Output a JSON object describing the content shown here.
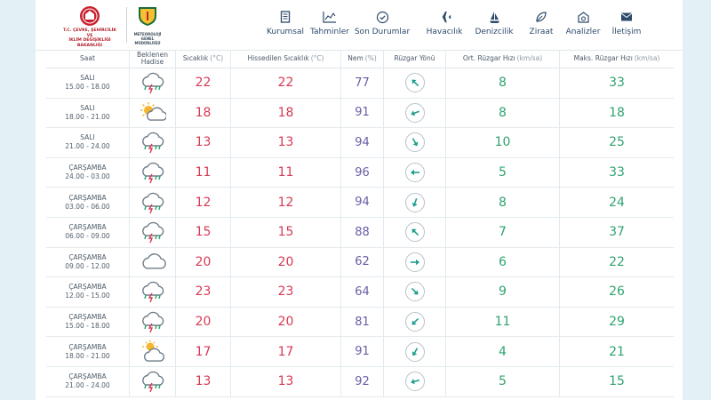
{
  "logos": {
    "ministry_text": [
      "T.C. ÇEVRE, ŞEHİRCİLİK VE",
      "İKLİM DEĞİŞİKLİĞİ BAKANLIĞI"
    ],
    "mgm_text": [
      "METEOROLOJİ",
      "GENEL MÜDÜRLÜĞÜ"
    ]
  },
  "nav": [
    {
      "label": "Kurumsal",
      "icon": "document-icon"
    },
    {
      "label": "Tahminler",
      "icon": "chart-icon"
    },
    {
      "label": "Son Durumlar",
      "icon": "clock-check-icon"
    },
    {
      "label": "Havacılık",
      "icon": "airplane-icon"
    },
    {
      "label": "Denizcilik",
      "icon": "ship-icon"
    },
    {
      "label": "Ziraat",
      "icon": "leaf-icon"
    },
    {
      "label": "Analizler",
      "icon": "analysis-icon"
    },
    {
      "label": "İletişim",
      "icon": "envelope-icon"
    }
  ],
  "table": {
    "headers": {
      "saat": "Saat",
      "hadise": [
        "Beklenen",
        "Hadise"
      ],
      "sicaklik": "Sıcaklık",
      "sicaklik_unit": "(°C)",
      "hissedilen": "Hissedilen Sıcaklık",
      "hissedilen_unit": "(°C)",
      "nem": "Nem",
      "nem_unit": "(%)",
      "ruzgar_yonu": "Rüzgar Yönü",
      "ort_ruzgar": "Ort. Rüzgar Hızı",
      "ort_ruzgar_unit": "(km/sa)",
      "maks_ruzgar": "Maks. Rüzgar Hızı",
      "maks_ruzgar_unit": "(km/sa)"
    },
    "rows": [
      {
        "day": "SALI",
        "time": "15.00 - 18.00",
        "event": "thunderstorm-rain-icon",
        "temp": "22",
        "feels": "22",
        "humidity": "77",
        "wind_dir_deg": 315,
        "wind_avg": "8",
        "wind_max": "33"
      },
      {
        "day": "SALI",
        "time": "18.00 - 21.00",
        "event": "partly-cloudy-icon",
        "temp": "18",
        "feels": "18",
        "humidity": "91",
        "wind_dir_deg": 250,
        "wind_avg": "8",
        "wind_max": "18"
      },
      {
        "day": "SALI",
        "time": "21.00 - 24.00",
        "event": "thunderstorm-rain-icon",
        "temp": "13",
        "feels": "13",
        "humidity": "94",
        "wind_dir_deg": 150,
        "wind_avg": "10",
        "wind_max": "25"
      },
      {
        "day": "ÇARŞAMBA",
        "time": "24.00 - 03.00",
        "event": "thunderstorm-rain-icon",
        "temp": "11",
        "feels": "11",
        "humidity": "96",
        "wind_dir_deg": 270,
        "wind_avg": "5",
        "wind_max": "33"
      },
      {
        "day": "ÇARŞAMBA",
        "time": "03.00 - 06.00",
        "event": "thunderstorm-rain-icon",
        "temp": "12",
        "feels": "12",
        "humidity": "94",
        "wind_dir_deg": 200,
        "wind_avg": "8",
        "wind_max": "24"
      },
      {
        "day": "ÇARŞAMBA",
        "time": "06.00 - 09.00",
        "event": "thunderstorm-rain-icon",
        "temp": "15",
        "feels": "15",
        "humidity": "88",
        "wind_dir_deg": 315,
        "wind_avg": "7",
        "wind_max": "37"
      },
      {
        "day": "ÇARŞAMBA",
        "time": "09.00 - 12.00",
        "event": "cloudy-icon",
        "temp": "20",
        "feels": "20",
        "humidity": "62",
        "wind_dir_deg": 90,
        "wind_avg": "6",
        "wind_max": "22"
      },
      {
        "day": "ÇARŞAMBA",
        "time": "12.00 - 15.00",
        "event": "thunderstorm-rain-icon",
        "temp": "23",
        "feels": "23",
        "humidity": "64",
        "wind_dir_deg": 135,
        "wind_avg": "9",
        "wind_max": "26"
      },
      {
        "day": "ÇARŞAMBA",
        "time": "15.00 - 18.00",
        "event": "thunderstorm-rain-icon",
        "temp": "20",
        "feels": "20",
        "humidity": "81",
        "wind_dir_deg": 225,
        "wind_avg": "11",
        "wind_max": "29"
      },
      {
        "day": "ÇARŞAMBA",
        "time": "18.00 - 21.00",
        "event": "sun-cloud-icon",
        "temp": "17",
        "feels": "17",
        "humidity": "91",
        "wind_dir_deg": 210,
        "wind_avg": "4",
        "wind_max": "21"
      },
      {
        "day": "ÇARŞAMBA",
        "time": "21.00 - 24.00",
        "event": "thunderstorm-rain-icon",
        "temp": "13",
        "feels": "13",
        "humidity": "92",
        "wind_dir_deg": 255,
        "wind_avg": "5",
        "wind_max": "15"
      }
    ]
  },
  "colors": {
    "temp": "#d63a54",
    "humidity": "#6b5da6",
    "wind": "#2fa36f",
    "nav_text": "#2c4a6b",
    "arrow": "#1f9e8e"
  }
}
